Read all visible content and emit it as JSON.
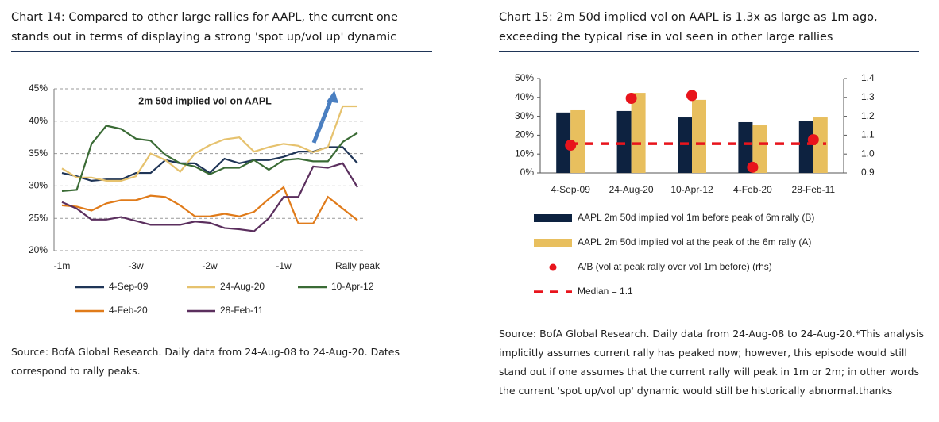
{
  "chart_data": [
    {
      "type": "line",
      "title": "Chart 14: Compared to other large rallies for AAPL, the current one stands out in terms of displaying a strong 'spot up/vol up' dynamic",
      "annotation": "2m 50d implied vol on AAPL",
      "source": "Source: BofA Global Research. Daily data from 24-Aug-08 to 24-Aug-20. Dates correspond to rally peaks.",
      "categories": [
        "-1m",
        null,
        null,
        null,
        null,
        "-3w",
        null,
        null,
        null,
        null,
        "-2w",
        null,
        null,
        null,
        null,
        "-1w",
        null,
        null,
        null,
        null,
        "Rally peak"
      ],
      "ylim": [
        20,
        45
      ],
      "yticks": [
        {
          "value": 20,
          "label": "20%"
        },
        {
          "value": 25,
          "label": "25%"
        },
        {
          "value": 30,
          "label": "30%"
        },
        {
          "value": 35,
          "label": "35%"
        },
        {
          "value": 40,
          "label": "40%"
        },
        {
          "value": 45,
          "label": "45%"
        }
      ],
      "grid": true,
      "series": [
        {
          "name": "4-Sep-09",
          "color": "#1f3557",
          "values": [
            32,
            31.5,
            30.8,
            31,
            31,
            32,
            32,
            34,
            33.5,
            33.5,
            32,
            34.2,
            33.5,
            34,
            34,
            34.5,
            35.3,
            35.3,
            36,
            36,
            33.5
          ]
        },
        {
          "name": "24-Aug-20",
          "color": "#e6c26e",
          "values": [
            32.7,
            31.3,
            31.3,
            30.8,
            30.8,
            31.5,
            35,
            34,
            32.2,
            35,
            36.3,
            37.2,
            37.5,
            35.3,
            36,
            36.5,
            36.2,
            35.2,
            36,
            42.3,
            42.3
          ]
        },
        {
          "name": "10-Apr-12",
          "color": "#3a6b35",
          "values": [
            29.2,
            29.4,
            36.5,
            39.3,
            38.8,
            37.3,
            37,
            34.8,
            33.5,
            33,
            31.8,
            32.8,
            32.8,
            34,
            32.5,
            34,
            34.2,
            33.8,
            33.8,
            36.8,
            38.2
          ]
        },
        {
          "name": "4-Feb-20",
          "color": "#e07b1a",
          "values": [
            27,
            26.8,
            26.2,
            27.3,
            27.8,
            27.8,
            28.5,
            28.3,
            27,
            25.3,
            25.3,
            25.7,
            25.3,
            26,
            28,
            29.8,
            24.2,
            24.2,
            28.3,
            26.5,
            24.7
          ]
        },
        {
          "name": "28-Feb-11",
          "color": "#5b2f5e",
          "values": [
            27.5,
            26.5,
            24.8,
            24.8,
            25.2,
            24.6,
            24,
            24,
            24,
            24.5,
            24.3,
            23.5,
            23.3,
            23,
            25,
            28.3,
            28.3,
            33,
            32.8,
            33.5,
            29.8
          ]
        }
      ]
    },
    {
      "type": "bar",
      "title": "Chart 15: 2m 50d implied vol on AAPL is 1.3x as large as 1m ago, exceeding the typical rise in vol seen in other large rallies",
      "source": "Source: BofA Global Research. Daily data from 24-Aug-08 to 24-Aug-20.*This analysis implicitly assumes current rally has peaked now; however, this episode would still stand out if one assumes that the current rally will peak in 1m or 2m; in other words the current 'spot up/vol up' dynamic would still be historically abnormal.thanks",
      "categories": [
        "4-Sep-09",
        "24-Aug-20",
        "10-Apr-12",
        "4-Feb-20",
        "28-Feb-11"
      ],
      "ylim": [
        0,
        50
      ],
      "yticks": [
        {
          "value": 0,
          "label": "0%"
        },
        {
          "value": 10,
          "label": "10%"
        },
        {
          "value": 20,
          "label": "20%"
        },
        {
          "value": 30,
          "label": "30%"
        },
        {
          "value": 40,
          "label": "40%"
        },
        {
          "value": 50,
          "label": "50%"
        }
      ],
      "y2lim": [
        0.9,
        1.4
      ],
      "y2ticks": [
        0.9,
        {
          "value": 1.0,
          "label": "1.0"
        },
        1.1,
        1.2,
        1.3,
        1.4
      ],
      "series": [
        {
          "name": "AAPL 2m 50d implied vol 1m before peak of 6m rally (B)",
          "color": "#0d2240",
          "values": [
            32,
            32.8,
            29.4,
            26.9,
            27.7
          ]
        },
        {
          "name": "AAPL 2m 50d implied vol at the peak of the 6m rally (A)",
          "color": "#e8bf5e",
          "values": [
            33.2,
            42.4,
            38.7,
            25.2,
            29.4
          ]
        },
        {
          "name": "A/B (vol at peak rally over vol 1m before) (rhs)",
          "color": "#e8141c",
          "axis": "y2",
          "marker": "dot",
          "values": [
            1.047,
            1.295,
            1.31,
            0.93,
            1.076
          ]
        }
      ],
      "reference_line": {
        "name": "Median = 1.1",
        "value": 1.055,
        "axis": "y2",
        "color": "#e8141c",
        "style": "dashed"
      }
    }
  ]
}
